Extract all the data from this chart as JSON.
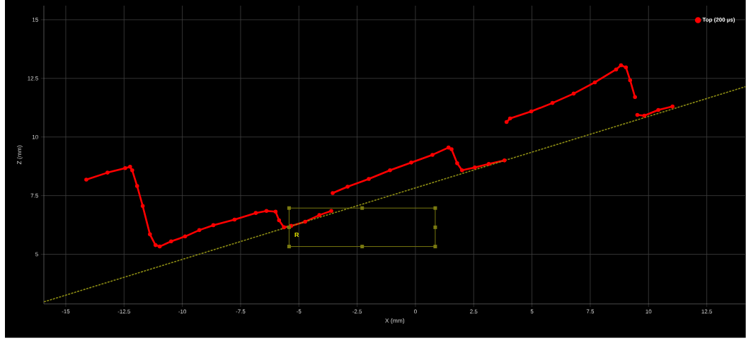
{
  "chart_data": {
    "type": "line",
    "xlabel": "X (mm)",
    "ylabel": "Z (mm)",
    "xlim": [
      -15.94,
      14.17
    ],
    "ylim": [
      2.88,
      15.6
    ],
    "xticks": [
      -15,
      -12.5,
      -10,
      -7.5,
      -5,
      -2.5,
      0,
      2.5,
      5,
      7.5,
      10,
      12.5
    ],
    "yticks": [
      5,
      7.5,
      10,
      12.5,
      15
    ],
    "grid": true,
    "legend": "top right",
    "annotations": [
      "R"
    ],
    "series": [
      {
        "name": "Top (200 µs)",
        "color": "#ff0000",
        "marker": "circle",
        "x": [
          -14.12,
          -13.21,
          -12.45,
          -12.24,
          -12.15,
          -11.94,
          -11.7,
          -11.39,
          -11.15,
          -10.97,
          -10.48,
          -9.88,
          -9.27,
          -8.67,
          -7.76,
          -6.85,
          -6.39,
          -6.0,
          -5.85,
          -5.64,
          -5.33,
          -4.73,
          -4.12,
          -3.61,
          -3.58,
          -3.55,
          -2.91,
          -2.0,
          -1.09,
          -0.18,
          0.73,
          1.42,
          1.55,
          1.79,
          2.0,
          2.55,
          3.15,
          3.82,
          3.86,
          3.91,
          4.06,
          4.97,
          5.88,
          6.79,
          7.7,
          8.61,
          8.82,
          9.03,
          9.21,
          9.42,
          9.47,
          9.52,
          9.82,
          10.42,
          11.03
        ],
        "values": [
          8.18,
          8.48,
          8.67,
          8.73,
          8.58,
          7.91,
          7.06,
          5.85,
          5.39,
          5.33,
          5.55,
          5.76,
          6.03,
          6.24,
          6.48,
          6.76,
          6.85,
          6.82,
          6.45,
          6.15,
          6.21,
          6.39,
          6.67,
          6.85,
          null,
          7.61,
          7.88,
          8.21,
          8.58,
          8.91,
          9.24,
          9.55,
          9.48,
          8.88,
          8.58,
          8.7,
          8.85,
          9.0,
          null,
          10.64,
          10.79,
          11.09,
          11.45,
          11.85,
          12.33,
          12.88,
          13.06,
          12.97,
          12.42,
          11.7,
          null,
          10.94,
          10.91,
          11.15,
          11.3
        ]
      },
      {
        "color": "#8c8c14",
        "marker": "none",
        "line_style": "dashed",
        "x": [
          -15.94,
          14.17
        ],
        "values": [
          2.97,
          12.15
        ]
      }
    ]
  }
}
